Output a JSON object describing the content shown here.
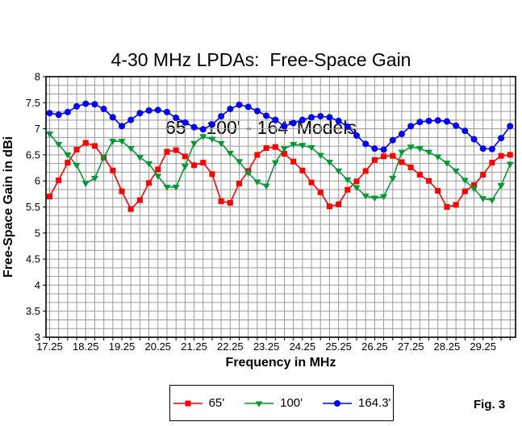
{
  "title": {
    "line1": "4-30 MHz LPDAs:  Free-Space Gain",
    "line2": "65' - 100' - 164' Models"
  },
  "fig_label": "Fig. 3",
  "chart_data": {
    "type": "line",
    "title": "4-30 MHz LPDAs: Free-Space Gain, 65' - 100' - 164' Models",
    "xlabel": "Frequency in MHz",
    "ylabel": "Free-Space Gain in dBi",
    "xlim": [
      17.15,
      30.15
    ],
    "ylim": [
      3,
      8
    ],
    "grid": true,
    "x_minor_step_mhz": 0.25,
    "y_minor_step_dbi": 0.1667,
    "legend_position": "bottom",
    "x_tick_labels": [
      "17.25",
      "18.25",
      "19.25",
      "20.25",
      "21.25",
      "22.25",
      "23.25",
      "24.25",
      "25.25",
      "26.25",
      "27.25",
      "28.25",
      "29.25"
    ],
    "y_tick_labels": [
      "8",
      "7.5",
      "7",
      "6.5",
      "6",
      "5.5",
      "5",
      "4.5",
      "4",
      "3.5",
      "3"
    ],
    "x": [
      17.25,
      17.5,
      17.75,
      18,
      18.25,
      18.5,
      18.75,
      19,
      19.25,
      19.5,
      19.75,
      20,
      20.25,
      20.5,
      20.75,
      21,
      21.25,
      21.5,
      21.75,
      22,
      22.25,
      22.5,
      22.75,
      23,
      23.25,
      23.5,
      23.75,
      24,
      24.25,
      24.5,
      24.75,
      25,
      25.25,
      25.5,
      25.75,
      26,
      26.25,
      26.5,
      26.75,
      27,
      27.25,
      27.5,
      27.75,
      28,
      28.25,
      28.5,
      28.75,
      29,
      29.25,
      29.5,
      29.75,
      30
    ],
    "series": [
      {
        "name": "65'",
        "color": "#ff0000",
        "marker": "square",
        "values": [
          5.7,
          6.01,
          6.35,
          6.6,
          6.73,
          6.67,
          6.45,
          6.2,
          5.8,
          5.46,
          5.63,
          5.96,
          6.22,
          6.56,
          6.59,
          6.47,
          6.3,
          6.35,
          6.13,
          5.61,
          5.58,
          5.95,
          6.19,
          6.5,
          6.63,
          6.65,
          6.52,
          6.37,
          6.2,
          5.97,
          5.78,
          5.51,
          5.55,
          5.83,
          5.99,
          6.19,
          6.4,
          6.47,
          6.48,
          6.36,
          6.26,
          6.12,
          6.0,
          5.81,
          5.5,
          5.54,
          5.8,
          5.92,
          6.12,
          6.35,
          6.48,
          6.5
        ]
      },
      {
        "name": "100'",
        "color": "#009933",
        "marker": "triangle-down",
        "values": [
          6.9,
          6.7,
          6.5,
          6.3,
          5.95,
          6.05,
          6.45,
          6.76,
          6.76,
          6.62,
          6.45,
          6.33,
          6.09,
          5.88,
          5.88,
          6.28,
          6.72,
          6.85,
          6.8,
          6.72,
          6.53,
          6.37,
          6.15,
          5.98,
          5.9,
          6.35,
          6.62,
          6.7,
          6.68,
          6.64,
          6.49,
          6.36,
          6.19,
          6.02,
          5.87,
          5.71,
          5.67,
          5.7,
          6.05,
          6.55,
          6.65,
          6.62,
          6.55,
          6.46,
          6.34,
          6.19,
          6.01,
          5.85,
          5.66,
          5.63,
          5.91,
          6.32
        ]
      },
      {
        "name": "164.3'",
        "color": "#0000ff",
        "marker": "circle",
        "values": [
          7.3,
          7.27,
          7.32,
          7.43,
          7.48,
          7.47,
          7.38,
          7.22,
          7.05,
          7.17,
          7.3,
          7.35,
          7.36,
          7.32,
          7.21,
          7.12,
          7.03,
          6.99,
          7.08,
          7.24,
          7.38,
          7.46,
          7.42,
          7.34,
          7.25,
          7.17,
          7.05,
          7.11,
          7.17,
          7.22,
          7.24,
          7.22,
          7.15,
          7.04,
          6.87,
          6.71,
          6.62,
          6.6,
          6.78,
          6.9,
          7.05,
          7.13,
          7.15,
          7.16,
          7.14,
          7.06,
          6.96,
          6.8,
          6.62,
          6.61,
          6.82,
          7.05
        ]
      }
    ]
  }
}
